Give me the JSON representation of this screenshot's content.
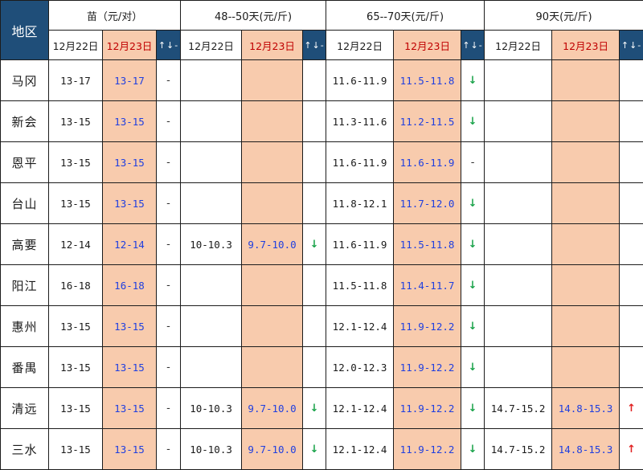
{
  "header": {
    "region_label": "地区",
    "groups": [
      {
        "label": "苗（元/对）"
      },
      {
        "label": "48--50天(元/斤)"
      },
      {
        "label": "65--70天(元/斤)"
      },
      {
        "label": "90天(元/斤)"
      }
    ],
    "prev_date": "12月22日",
    "curr_date": "12月23日",
    "trend_label": "↑↓-"
  },
  "rows": [
    {
      "region": "马冈",
      "cells": [
        {
          "prev": "13-17",
          "curr": "13-17",
          "trend": "-",
          "trend_type": "flat"
        },
        {
          "prev": "",
          "curr": "",
          "trend": "",
          "trend_type": "none"
        },
        {
          "prev": "11.6-11.9",
          "curr": "11.5-11.8",
          "trend": "↓",
          "trend_type": "down"
        },
        {
          "prev": "",
          "curr": "",
          "trend": "",
          "trend_type": "none"
        }
      ]
    },
    {
      "region": "新会",
      "cells": [
        {
          "prev": "13-15",
          "curr": "13-15",
          "trend": "-",
          "trend_type": "flat"
        },
        {
          "prev": "",
          "curr": "",
          "trend": "",
          "trend_type": "none"
        },
        {
          "prev": "11.3-11.6",
          "curr": "11.2-11.5",
          "trend": "↓",
          "trend_type": "down"
        },
        {
          "prev": "",
          "curr": "",
          "trend": "",
          "trend_type": "none"
        }
      ]
    },
    {
      "region": "恩平",
      "cells": [
        {
          "prev": "13-15",
          "curr": "13-15",
          "trend": "-",
          "trend_type": "flat"
        },
        {
          "prev": "",
          "curr": "",
          "trend": "",
          "trend_type": "none"
        },
        {
          "prev": "11.6-11.9",
          "curr": "11.6-11.9",
          "trend": "-",
          "trend_type": "flat"
        },
        {
          "prev": "",
          "curr": "",
          "trend": "",
          "trend_type": "none"
        }
      ]
    },
    {
      "region": "台山",
      "cells": [
        {
          "prev": "13-15",
          "curr": "13-15",
          "trend": "-",
          "trend_type": "flat"
        },
        {
          "prev": "",
          "curr": "",
          "trend": "",
          "trend_type": "none"
        },
        {
          "prev": "11.8-12.1",
          "curr": "11.7-12.0",
          "trend": "↓",
          "trend_type": "down"
        },
        {
          "prev": "",
          "curr": "",
          "trend": "",
          "trend_type": "none"
        }
      ]
    },
    {
      "region": "高要",
      "cells": [
        {
          "prev": "12-14",
          "curr": "12-14",
          "trend": "-",
          "trend_type": "flat"
        },
        {
          "prev": "10-10.3",
          "curr": "9.7-10.0",
          "trend": "↓",
          "trend_type": "down"
        },
        {
          "prev": "11.6-11.9",
          "curr": "11.5-11.8",
          "trend": "↓",
          "trend_type": "down"
        },
        {
          "prev": "",
          "curr": "",
          "trend": "",
          "trend_type": "none"
        }
      ]
    },
    {
      "region": "阳江",
      "cells": [
        {
          "prev": "16-18",
          "curr": "16-18",
          "trend": "-",
          "trend_type": "flat"
        },
        {
          "prev": "",
          "curr": "",
          "trend": "",
          "trend_type": "none"
        },
        {
          "prev": "11.5-11.8",
          "curr": "11.4-11.7",
          "trend": "↓",
          "trend_type": "down"
        },
        {
          "prev": "",
          "curr": "",
          "trend": "",
          "trend_type": "none"
        }
      ]
    },
    {
      "region": "惠州",
      "cells": [
        {
          "prev": "13-15",
          "curr": "13-15",
          "trend": "-",
          "trend_type": "flat"
        },
        {
          "prev": "",
          "curr": "",
          "trend": "",
          "trend_type": "none"
        },
        {
          "prev": "12.1-12.4",
          "curr": "11.9-12.2",
          "trend": "↓",
          "trend_type": "down"
        },
        {
          "prev": "",
          "curr": "",
          "trend": "",
          "trend_type": "none"
        }
      ]
    },
    {
      "region": "番禺",
      "cells": [
        {
          "prev": "13-15",
          "curr": "13-15",
          "trend": "-",
          "trend_type": "flat"
        },
        {
          "prev": "",
          "curr": "",
          "trend": "",
          "trend_type": "none"
        },
        {
          "prev": "12.0-12.3",
          "curr": "11.9-12.2",
          "trend": "↓",
          "trend_type": "down"
        },
        {
          "prev": "",
          "curr": "",
          "trend": "",
          "trend_type": "none"
        }
      ]
    },
    {
      "region": "清远",
      "cells": [
        {
          "prev": "13-15",
          "curr": "13-15",
          "trend": "-",
          "trend_type": "flat"
        },
        {
          "prev": "10-10.3",
          "curr": "9.7-10.0",
          "trend": "↓",
          "trend_type": "down"
        },
        {
          "prev": "12.1-12.4",
          "curr": "11.9-12.2",
          "trend": "↓",
          "trend_type": "down"
        },
        {
          "prev": "14.7-15.2",
          "curr": "14.8-15.3",
          "trend": "↑",
          "trend_type": "up"
        }
      ]
    },
    {
      "region": "三水",
      "cells": [
        {
          "prev": "13-15",
          "curr": "13-15",
          "trend": "-",
          "trend_type": "flat"
        },
        {
          "prev": "10-10.3",
          "curr": "9.7-10.0",
          "trend": "↓",
          "trend_type": "down"
        },
        {
          "prev": "12.1-12.4",
          "curr": "11.9-12.2",
          "trend": "↓",
          "trend_type": "down"
        },
        {
          "prev": "14.7-15.2",
          "curr": "14.8-15.3",
          "trend": "↑",
          "trend_type": "up"
        }
      ]
    }
  ]
}
